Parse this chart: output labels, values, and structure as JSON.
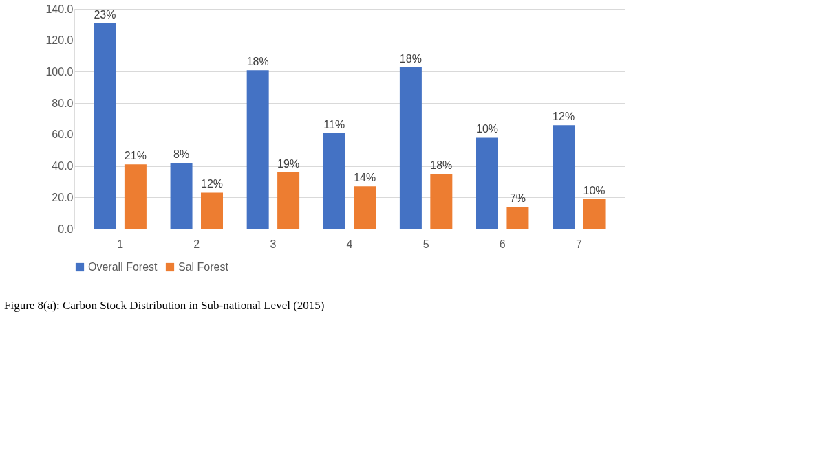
{
  "chart_data": {
    "type": "bar",
    "categories": [
      "1",
      "2",
      "3",
      "4",
      "5",
      "6",
      "7"
    ],
    "series": [
      {
        "name": "Overall Forest",
        "color": "#4472c4",
        "values": [
          131,
          42,
          101,
          61,
          103,
          58,
          66
        ]
      },
      {
        "name": "Sal Forest",
        "color": "#ed7d31",
        "values": [
          41,
          23,
          36,
          27,
          35,
          14,
          19
        ]
      }
    ],
    "ylim": [
      0,
      140
    ],
    "yticks": [
      {
        "value": 0,
        "label": "0.0"
      },
      {
        "value": 20,
        "label": "20.0"
      },
      {
        "value": 40,
        "label": "40.0"
      },
      {
        "value": 60,
        "label": "60.0"
      },
      {
        "value": 80,
        "label": "80.0"
      },
      {
        "value": 100,
        "label": "100.0"
      },
      {
        "value": 120,
        "label": "120.0"
      },
      {
        "value": 140,
        "label": "140.0"
      }
    ],
    "grid": "y",
    "legend": "bottom",
    "annotations": [
      "23%",
      "21%",
      "8%",
      "12%",
      "18%",
      "19%",
      "11%",
      "14%",
      "18%",
      "18%",
      "10%",
      "7%",
      "12%",
      "10%",
      "Figure 8(a): Carbon Stock Distribution in Sub-national Level (2015)"
    ]
  }
}
